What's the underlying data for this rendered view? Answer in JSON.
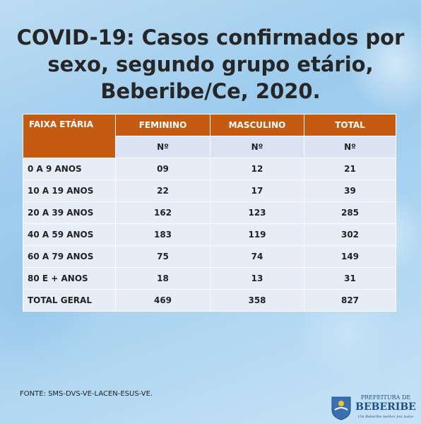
{
  "header": {
    "title": "COVID-19: Casos confirmados por sexo, segundo grupo etário, Beberibe/Ce, 2020."
  },
  "table": {
    "columns": [
      "FAIXA ETÁRIA",
      "FEMININO",
      "MASCULINO",
      "TOTAL"
    ],
    "subheaders": [
      "Nº",
      "Nº",
      "Nº"
    ],
    "rows": [
      [
        "0 A 9 ANOS",
        "09",
        "12",
        "21"
      ],
      [
        "10 A 19 ANOS",
        "22",
        "17",
        "39"
      ],
      [
        "20 A 39 ANOS",
        "162",
        "123",
        "285"
      ],
      [
        "40 A 59 ANOS",
        "183",
        "119",
        "302"
      ],
      [
        "60 A 79 ANOS",
        "75",
        "74",
        "149"
      ],
      [
        "80 E + ANOS",
        "18",
        "13",
        "31"
      ],
      [
        "TOTAL GERAL",
        "469",
        "358",
        "827"
      ]
    ]
  },
  "footer": {
    "source": "FONTE: SMS-DVS-VE-LACEN-ESUS-VE."
  },
  "logo": {
    "line1": "PREFEITURA DE",
    "line2": "BEBERIBE",
    "slogan": "Um Beberibe melhor pra todos"
  }
}
